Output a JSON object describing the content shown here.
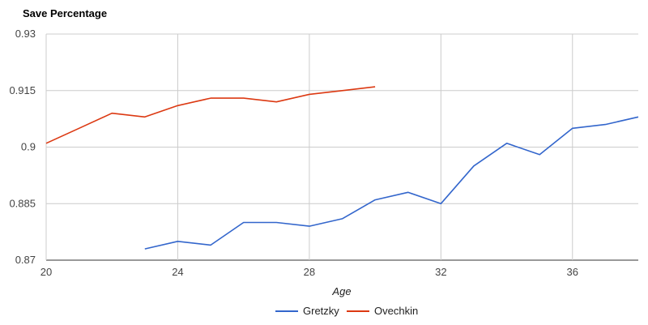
{
  "chart_data": {
    "type": "line",
    "title": "Save Percentage",
    "xlabel": "Age",
    "ylabel": "",
    "xlim": [
      20,
      38
    ],
    "ylim": [
      0.87,
      0.93
    ],
    "x_ticks": [
      "20",
      "24",
      "28",
      "32",
      "36"
    ],
    "y_ticks": [
      "0.93",
      "0.915",
      "0.9",
      "0.885",
      "0.87"
    ],
    "grid": true,
    "legend_position": "bottom",
    "series": [
      {
        "name": "Gretzky",
        "color": "#3366cc",
        "x": [
          23,
          24,
          25,
          26,
          27,
          28,
          29,
          30,
          31,
          32,
          33,
          34,
          35,
          36,
          37,
          38
        ],
        "values": [
          0.873,
          0.875,
          0.874,
          0.88,
          0.88,
          0.879,
          0.881,
          0.886,
          0.888,
          0.885,
          0.895,
          0.901,
          0.898,
          0.905,
          0.906,
          0.908
        ]
      },
      {
        "name": "Ovechkin",
        "color": "#dc3912",
        "x": [
          20,
          21,
          22,
          23,
          24,
          25,
          26,
          27,
          28,
          29,
          30
        ],
        "values": [
          0.901,
          0.905,
          0.909,
          0.908,
          0.911,
          0.913,
          0.913,
          0.912,
          0.914,
          0.915,
          0.916
        ]
      }
    ]
  }
}
